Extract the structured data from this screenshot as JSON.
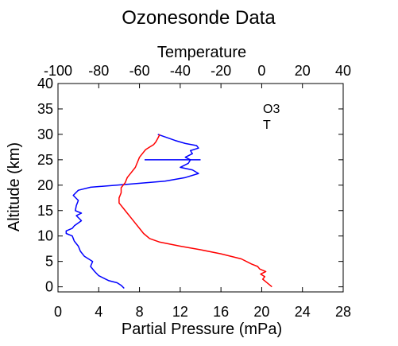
{
  "chart_data": {
    "type": "line",
    "title": "Ozonesonde Data",
    "x_bottom": {
      "label": "Partial Pressure (mPa)",
      "range": [
        0,
        28
      ],
      "ticks": [
        "0",
        "4",
        "8",
        "12",
        "16",
        "20",
        "24",
        "28"
      ]
    },
    "x_top": {
      "label": "Temperature",
      "range": [
        -100,
        40
      ],
      "ticks": [
        "-100",
        "-80",
        "-60",
        "-40",
        "-20",
        "0",
        "20",
        "40"
      ]
    },
    "y": {
      "label": "Altitude (km)",
      "range": [
        -1,
        40
      ],
      "ticks": [
        "0",
        "5",
        "10",
        "15",
        "20",
        "25",
        "30",
        "35",
        "40"
      ]
    },
    "legend": [
      {
        "label": "O3",
        "color": "#0000ff"
      },
      {
        "label": "T",
        "color": "#ff0000"
      }
    ],
    "series": [
      {
        "name": "O3",
        "axis": "bottom",
        "color": "#0000ff",
        "x": [
          6.5,
          6.2,
          5.8,
          5.0,
          4.6,
          4.0,
          3.6,
          3.2,
          3.4,
          2.6,
          2.2,
          2.0,
          1.6,
          1.4,
          0.8,
          0.8,
          1.4,
          1.6,
          2.3,
          1.8,
          2.3,
          1.7,
          1.8,
          2.0,
          1.5,
          2.0,
          3.2,
          7.0,
          10.5,
          12.5,
          13.8,
          13.2,
          12.0,
          12.8,
          13.0,
          12.5,
          13.2,
          13.0,
          13.8,
          13.6,
          12.5,
          11.5,
          10.8,
          9.8
        ],
        "y": [
          -0.3,
          0.3,
          0.8,
          1.2,
          1.6,
          2.2,
          3.0,
          4.0,
          5.0,
          6.0,
          7.0,
          8.0,
          9.0,
          10.0,
          10.5,
          11.0,
          11.5,
          12.0,
          13.0,
          14.0,
          14.5,
          15.0,
          16.0,
          17.0,
          18.0,
          19.0,
          19.6,
          20.2,
          20.8,
          21.5,
          22.3,
          23.0,
          23.5,
          24.3,
          25.0,
          25.5,
          26.2,
          26.8,
          27.3,
          27.8,
          28.2,
          28.8,
          29.3,
          30.0
        ]
      },
      {
        "name": "T",
        "axis": "top",
        "color": "#ff0000",
        "x": [
          5.0,
          2.0,
          0.5,
          1.5,
          -0.5,
          2.0,
          -1.0,
          -2.0,
          -5.0,
          -10.0,
          -20.0,
          -30.0,
          -40.0,
          -50.0,
          -55.0,
          -58.0,
          -60.0,
          -62.0,
          -64.0,
          -66.0,
          -68.0,
          -70.0,
          -70.0,
          -69.0,
          -69.0,
          -67.0,
          -66.0,
          -64.0,
          -62.0,
          -61.0,
          -60.0,
          -58.0,
          -57.0,
          -55.0,
          -53.0,
          -52.0,
          -51.0,
          -50.0
        ],
        "y": [
          0.0,
          1.0,
          1.5,
          2.0,
          2.5,
          3.0,
          3.5,
          4.0,
          4.5,
          5.5,
          6.5,
          7.3,
          8.0,
          8.8,
          9.5,
          10.5,
          11.5,
          12.5,
          13.5,
          14.5,
          15.5,
          16.5,
          17.5,
          18.5,
          19.5,
          20.5,
          21.5,
          22.5,
          23.5,
          24.5,
          25.5,
          26.5,
          27.0,
          27.5,
          28.0,
          28.5,
          29.2,
          30.0
        ]
      }
    ],
    "annotations": [
      {
        "type": "hline",
        "axis": "bottom",
        "x_from": 8.5,
        "x_to": 14.0,
        "y": 25.0,
        "color": "#0000ff"
      }
    ],
    "grid": false,
    "legend_position": "top-right"
  }
}
